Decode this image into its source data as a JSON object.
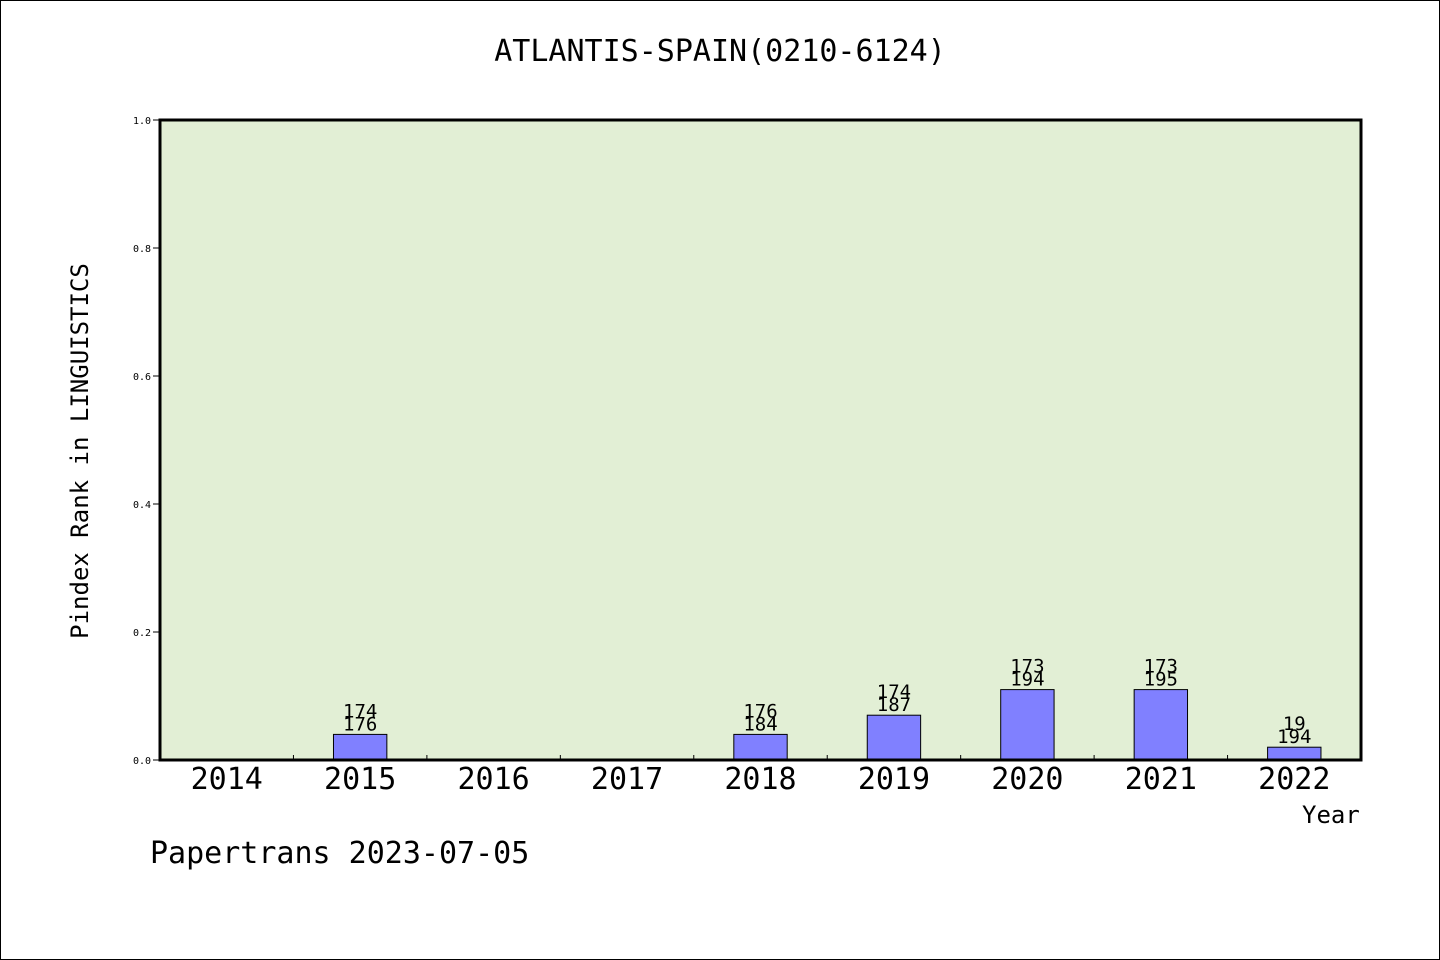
{
  "chart_data": {
    "type": "bar",
    "title": "ATLANTIS-SPAIN(0210-6124)",
    "xlabel": "Year",
    "ylabel": "Pindex Rank in LINGUISTICS",
    "ylim": [
      0,
      1.0
    ],
    "yticks": [
      "0.0",
      "0.2",
      "0.4",
      "0.6",
      "0.8",
      "1.0"
    ],
    "categories": [
      "2014",
      "2015",
      "2016",
      "2017",
      "2018",
      "2019",
      "2020",
      "2021",
      "2022"
    ],
    "values": [
      0,
      0.04,
      0,
      0,
      0.04,
      0.07,
      0.11,
      0.11,
      0.02
    ],
    "labels_top": [
      "",
      "174",
      "",
      "",
      "176",
      "174",
      "173",
      "173",
      "19"
    ],
    "labels_bottom": [
      "",
      "176",
      "",
      "",
      "184",
      "187",
      "194",
      "195",
      "194"
    ],
    "grid": false,
    "colors": {
      "plot_bg": "#e2efd5",
      "bar": "#8080ff",
      "bar_edge": "#000000"
    }
  },
  "footer": "Papertrans 2023-07-05"
}
